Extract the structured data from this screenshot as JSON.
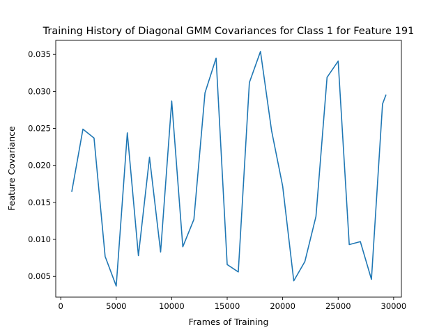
{
  "chart_data": {
    "type": "line",
    "title": "Training History of Diagonal GMM Covariances for Class 1 for Feature 191",
    "xlabel": "Frames of Training",
    "ylabel": "Feature Covariance",
    "xlim": [
      -450,
      30700
    ],
    "ylim": [
      0.0022,
      0.0369
    ],
    "xticks": [
      0,
      5000,
      10000,
      15000,
      20000,
      25000,
      30000
    ],
    "xtick_labels": [
      "0",
      "5000",
      "10000",
      "15000",
      "20000",
      "25000",
      "30000"
    ],
    "yticks": [
      0.005,
      0.01,
      0.015,
      0.02,
      0.025,
      0.03,
      0.035
    ],
    "ytick_labels": [
      "0.005",
      "0.010",
      "0.015",
      "0.020",
      "0.025",
      "0.030",
      "0.035"
    ],
    "grid": false,
    "series": [
      {
        "color": "#1f77b4",
        "x": [
          1000,
          2000,
          3000,
          4000,
          5000,
          6000,
          7000,
          8000,
          9000,
          10000,
          11000,
          12000,
          13000,
          14000,
          15000,
          16000,
          17000,
          18000,
          19000,
          20000,
          21000,
          22000,
          23000,
          24000,
          25000,
          26000,
          27000,
          28000,
          29000,
          29300
        ],
        "y": [
          0.0165,
          0.0249,
          0.0237,
          0.0077,
          0.0037,
          0.0244,
          0.0078,
          0.0211,
          0.0083,
          0.0287,
          0.009,
          0.0127,
          0.0298,
          0.0345,
          0.0066,
          0.0056,
          0.0312,
          0.0354,
          0.0247,
          0.0172,
          0.0044,
          0.007,
          0.0131,
          0.0319,
          0.0341,
          0.0093,
          0.0097,
          0.0046,
          0.0283,
          0.0295
        ]
      }
    ]
  }
}
